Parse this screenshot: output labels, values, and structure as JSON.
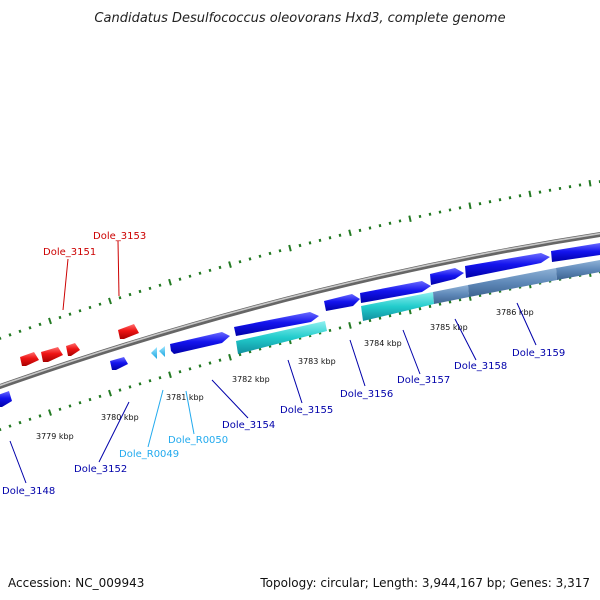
{
  "header": {
    "title": "Candidatus Desulfococcus oleovorans Hxd3, complete genome"
  },
  "footer": {
    "accession": "Accession: NC_009943",
    "summary": "Topology: circular; Length: 3,944,167 bp; Genes: 3,317"
  },
  "colors": {
    "plus_strand": "#0000ee",
    "minus_strand": "#ee0000",
    "rna": "#22ccdd",
    "cds_band": "#20c9c9",
    "tick": "#237a23",
    "backbone": "#999999",
    "label_blue": "#0000aa",
    "label_cyan": "#22aaee",
    "label_red": "#cc0000"
  },
  "scale_labels": [
    "3779 kbp",
    "3780 kbp",
    "3781 kbp",
    "3782 kbp",
    "3783 kbp",
    "3784 kbp",
    "3785 kbp",
    "3786 kbp"
  ],
  "gene_labels": [
    "Dole_3148",
    "Dole_3151",
    "Dole_3152",
    "Dole_3153",
    "Dole_R0049",
    "Dole_R0050",
    "Dole_3154",
    "Dole_3155",
    "Dole_3156",
    "Dole_3157",
    "Dole_3158",
    "Dole_3159"
  ]
}
